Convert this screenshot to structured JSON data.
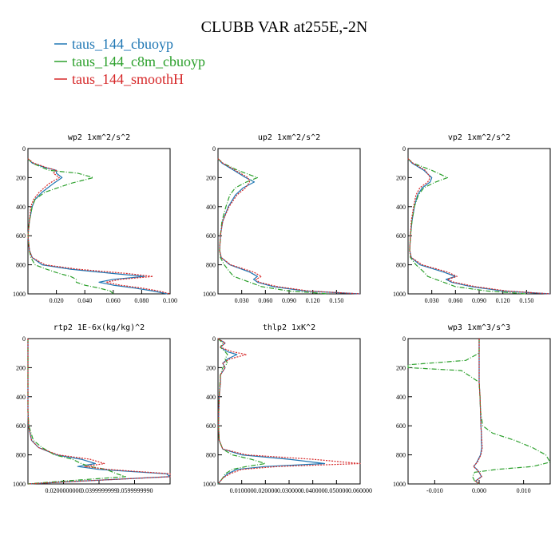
{
  "title": "CLUBB VAR at255E,-2N",
  "legend": [
    {
      "name": "taus_144_cbuoyp",
      "color": "#1f77b4",
      "dash": "solid"
    },
    {
      "name": "taus_144_c8m_cbuoyp",
      "color": "#2ca02c",
      "dash": "dashdot"
    },
    {
      "name": "taus_144_smoothH",
      "color": "#d62728",
      "dash": "dotted"
    }
  ],
  "chart_data": [
    {
      "type": "line",
      "title": "wp2  1xm^2/s^2",
      "xlim": [
        0,
        0.1
      ],
      "ylim": [
        0,
        1000
      ],
      "y_inverted": true,
      "xticks": [
        0.02,
        0.04,
        0.06,
        0.08,
        0.1
      ],
      "xtick_labels": [
        "0.020",
        "0.040",
        "0.060",
        "0.080",
        "0.100"
      ],
      "yticks": [
        0,
        200,
        400,
        600,
        800,
        1000
      ],
      "y": [
        70,
        100,
        130,
        150,
        170,
        200,
        240,
        300,
        350,
        400,
        500,
        600,
        700,
        750,
        800,
        830,
        860,
        880,
        900,
        920,
        940,
        960,
        980,
        1000
      ],
      "series": [
        {
          "name": "taus_144_cbuoyp",
          "x": [
            0,
            0.003,
            0.012,
            0.02,
            0.02,
            0.024,
            0.018,
            0.01,
            0.005,
            0.003,
            0.001,
            0,
            0.001,
            0.003,
            0.01,
            0.03,
            0.06,
            0.082,
            0.06,
            0.05,
            0.06,
            0.075,
            0.088,
            0.098
          ]
        },
        {
          "name": "taus_144_c8m_cbuoyp",
          "x": [
            0,
            0.003,
            0.01,
            0.015,
            0.035,
            0.046,
            0.03,
            0.012,
            0.005,
            0.003,
            0.001,
            0,
            0.001,
            0.002,
            0.005,
            0.013,
            0.022,
            0.03,
            0.034,
            0.034,
            0.04,
            0.05,
            0.058,
            0.06
          ]
        },
        {
          "name": "taus_144_smoothH",
          "x": [
            0,
            0.004,
            0.013,
            0.02,
            0.018,
            0.022,
            0.015,
            0.008,
            0.004,
            0.002,
            0.001,
            0,
            0.001,
            0.003,
            0.012,
            0.035,
            0.07,
            0.088,
            0.065,
            0.055,
            0.065,
            0.08,
            0.092,
            0.1
          ]
        }
      ]
    },
    {
      "type": "line",
      "title": "up2  1xm^2/s^2",
      "xlim": [
        0,
        0.18
      ],
      "ylim": [
        0,
        1000
      ],
      "y_inverted": true,
      "xticks": [
        0.03,
        0.06,
        0.09,
        0.12,
        0.15
      ],
      "xtick_labels": [
        "0.030",
        "0.060",
        "0.090",
        "0.120",
        "0.150"
      ],
      "yticks": [
        0,
        200,
        400,
        600,
        800,
        1000
      ],
      "y": [
        70,
        100,
        150,
        200,
        230,
        270,
        320,
        400,
        500,
        600,
        700,
        750,
        800,
        850,
        880,
        900,
        920,
        950,
        980,
        1000
      ],
      "series": [
        {
          "name": "taus_144_cbuoyp",
          "x": [
            0,
            0.005,
            0.02,
            0.035,
            0.046,
            0.032,
            0.022,
            0.013,
            0.006,
            0.003,
            0.002,
            0.004,
            0.015,
            0.04,
            0.05,
            0.045,
            0.05,
            0.07,
            0.11,
            0.18
          ]
        },
        {
          "name": "taus_144_c8m_cbuoyp",
          "x": [
            0,
            0.006,
            0.025,
            0.05,
            0.036,
            0.022,
            0.015,
            0.01,
            0.005,
            0.003,
            0.002,
            0.003,
            0.008,
            0.015,
            0.02,
            0.03,
            0.04,
            0.055,
            0.09,
            0.14
          ]
        },
        {
          "name": "taus_144_smoothH",
          "x": [
            0,
            0.006,
            0.022,
            0.038,
            0.04,
            0.035,
            0.024,
            0.014,
            0.006,
            0.003,
            0.002,
            0.004,
            0.016,
            0.045,
            0.055,
            0.048,
            0.052,
            0.075,
            0.115,
            0.18
          ]
        }
      ]
    },
    {
      "type": "line",
      "title": "vp2  1xm^2/s^2",
      "xlim": [
        0,
        0.18
      ],
      "ylim": [
        0,
        1000
      ],
      "y_inverted": true,
      "xticks": [
        0.03,
        0.06,
        0.09,
        0.12,
        0.15
      ],
      "xtick_labels": [
        "0.030",
        "0.060",
        "0.090",
        "0.120",
        "0.150"
      ],
      "yticks": [
        0,
        200,
        400,
        600,
        800,
        1000
      ],
      "y": [
        70,
        100,
        150,
        200,
        230,
        270,
        320,
        400,
        500,
        600,
        700,
        750,
        800,
        850,
        880,
        900,
        920,
        950,
        980,
        1000
      ],
      "series": [
        {
          "name": "taus_144_cbuoyp",
          "x": [
            0,
            0.005,
            0.02,
            0.03,
            0.028,
            0.018,
            0.012,
            0.008,
            0.005,
            0.003,
            0.002,
            0.004,
            0.015,
            0.045,
            0.06,
            0.048,
            0.055,
            0.08,
            0.12,
            0.18
          ]
        },
        {
          "name": "taus_144_c8m_cbuoyp",
          "x": [
            0,
            0.006,
            0.03,
            0.05,
            0.035,
            0.02,
            0.013,
            0.008,
            0.005,
            0.003,
            0.002,
            0.003,
            0.01,
            0.02,
            0.025,
            0.035,
            0.045,
            0.06,
            0.1,
            0.15
          ]
        },
        {
          "name": "taus_144_smoothH",
          "x": [
            0,
            0.006,
            0.022,
            0.028,
            0.025,
            0.015,
            0.01,
            0.007,
            0.004,
            0.003,
            0.002,
            0.004,
            0.018,
            0.05,
            0.062,
            0.05,
            0.058,
            0.085,
            0.125,
            0.18
          ]
        }
      ]
    },
    {
      "type": "line",
      "title": "rtp2  1E-6x(kg/kg)^2",
      "xlim": [
        0,
        0.08
      ],
      "ylim": [
        0,
        1000
      ],
      "y_inverted": true,
      "xticks": [
        0.02,
        0.04,
        0.06
      ],
      "xtick_labels": [
        "0.0200000000",
        "0.0399999999",
        "0.0599999990"
      ],
      "yticks": [
        0,
        200,
        400,
        600,
        800,
        1000
      ],
      "y": [
        0,
        300,
        500,
        600,
        700,
        750,
        800,
        830,
        860,
        880,
        900,
        930,
        950,
        980,
        1000
      ],
      "series": [
        {
          "name": "taus_144_cbuoyp",
          "x": [
            0,
            0,
            0,
            0.0003,
            0.002,
            0.006,
            0.016,
            0.03,
            0.038,
            0.028,
            0.04,
            0.078,
            0.08,
            0.03,
            0
          ]
        },
        {
          "name": "taus_144_c8m_cbuoyp",
          "x": [
            0,
            0,
            0,
            0.0005,
            0.003,
            0.008,
            0.015,
            0.025,
            0.03,
            0.035,
            0.044,
            0.05,
            0.055,
            0.02,
            0
          ]
        },
        {
          "name": "taus_144_smoothH",
          "x": [
            0,
            0,
            0,
            0.0003,
            0.002,
            0.006,
            0.017,
            0.035,
            0.043,
            0.032,
            0.045,
            0.08,
            0.08,
            0.03,
            0
          ]
        }
      ]
    },
    {
      "type": "line",
      "title": "thlp2  1xK^2",
      "xlim": [
        0,
        0.06
      ],
      "ylim": [
        0,
        1000
      ],
      "y_inverted": true,
      "xticks": [
        0.01,
        0.02,
        0.03,
        0.04,
        0.05,
        0.06
      ],
      "xtick_labels": [
        "0.010000",
        "0.020000",
        "0.030000",
        "0.040000",
        "0.050000",
        "0.060000"
      ],
      "yticks": [
        0,
        200,
        400,
        600,
        800,
        1000
      ],
      "y": [
        0,
        30,
        60,
        90,
        110,
        140,
        170,
        200,
        250,
        300,
        400,
        500,
        600,
        700,
        760,
        800,
        830,
        860,
        880,
        900,
        930,
        960,
        980,
        1000
      ],
      "series": [
        {
          "name": "taus_144_cbuoyp",
          "x": [
            0,
            0.003,
            0.001,
            0.004,
            0.008,
            0.004,
            0.002,
            0.003,
            0.001,
            0.001,
            0.0005,
            0.0003,
            0.0002,
            0.0005,
            0.002,
            0.01,
            0.03,
            0.045,
            0.02,
            0.008,
            0.004,
            0.002,
            0.001,
            0
          ]
        },
        {
          "name": "taus_144_c8m_cbuoyp",
          "x": [
            0,
            0.002,
            0.001,
            0.003,
            0.004,
            0.003,
            0.004,
            0.002,
            0.001,
            0.0008,
            0.0005,
            0.0003,
            0.0002,
            0.0005,
            0.002,
            0.006,
            0.014,
            0.02,
            0.012,
            0.006,
            0.003,
            0.002,
            0.001,
            0
          ]
        },
        {
          "name": "taus_144_smoothH",
          "x": [
            0,
            0.003,
            0.001,
            0.006,
            0.012,
            0.005,
            0.002,
            0.003,
            0.001,
            0.001,
            0.0005,
            0.0003,
            0.0002,
            0.0005,
            0.002,
            0.012,
            0.04,
            0.06,
            0.025,
            0.01,
            0.005,
            0.002,
            0.001,
            0
          ]
        }
      ]
    },
    {
      "type": "line",
      "title": "wp3  1xm^3/s^3",
      "xlim": [
        -0.016,
        0.016
      ],
      "ylim": [
        0,
        1000
      ],
      "y_inverted": true,
      "xticks": [
        -0.01,
        0,
        0.01
      ],
      "xtick_labels": [
        "-0.010",
        "0.000",
        "0.010"
      ],
      "yticks": [
        0,
        200,
        400,
        600,
        800,
        1000
      ],
      "y": [
        0,
        100,
        150,
        180,
        200,
        220,
        300,
        400,
        500,
        600,
        650,
        700,
        750,
        800,
        850,
        880,
        900,
        920,
        950,
        980,
        1000
      ],
      "series": [
        {
          "name": "taus_144_cbuoyp",
          "x": [
            0,
            0,
            0,
            0,
            0,
            0,
            0,
            0.0002,
            0.0003,
            0.0004,
            0.0005,
            0.0005,
            0.0006,
            0.0003,
            -0.0005,
            -0.0012,
            -0.0005,
            0,
            0.0005,
            -0.0008,
            0
          ]
        },
        {
          "name": "taus_144_c8m_cbuoyp",
          "x": [
            0,
            0,
            -0.003,
            -0.016,
            -0.016,
            -0.004,
            0,
            0.0002,
            0.0003,
            0.0008,
            0.003,
            0.008,
            0.012,
            0.015,
            0.016,
            0.012,
            0.004,
            -0.001,
            -0.0015,
            -0.001,
            0
          ]
        },
        {
          "name": "taus_144_smoothH",
          "x": [
            0,
            0,
            0,
            0,
            0,
            0,
            0,
            0.0002,
            0.0003,
            0.0004,
            0.0005,
            0.0006,
            0.0007,
            0.0004,
            -0.0004,
            -0.0013,
            -0.0006,
            0,
            0.0006,
            -0.0008,
            0
          ]
        }
      ]
    }
  ]
}
